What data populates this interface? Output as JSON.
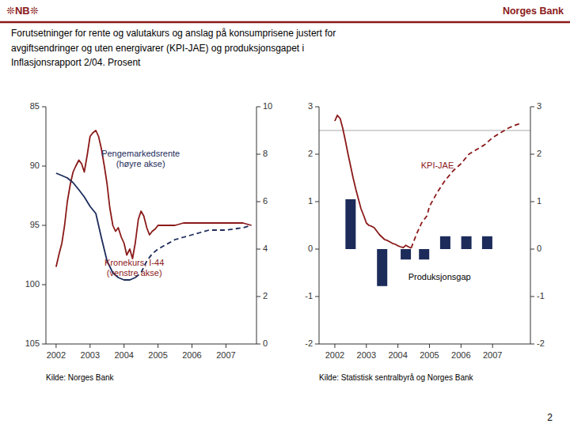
{
  "header": {
    "left": "❊NB❊",
    "right": "Norges Bank",
    "color": "#8B1A1A"
  },
  "title": "Forutsetninger for rente og valutakurs og anslag på konsumprisene justert for\navgiftsendringer og uten energivarer (KPI-JAE) og produksjonsgapet i\nInflasjonsrapport 2/04. Prosent",
  "page_number": "2",
  "chart_data": [
    {
      "type": "line",
      "xlim": [
        2001.7,
        2007.9
      ],
      "xticks": [
        2002,
        2003,
        2004,
        2005,
        2006,
        2007
      ],
      "ylim": [
        105,
        85
      ],
      "yticks": [
        85,
        90,
        95,
        100,
        105
      ],
      "y2lim": [
        0,
        10
      ],
      "y2ticks": [
        0,
        2,
        4,
        6,
        8,
        10
      ],
      "grid": false,
      "series": [
        {
          "color": "#8B1A1A",
          "line_style": "solid",
          "axis": "y",
          "x": [
            2002.0,
            2002.08,
            2002.17,
            2002.25,
            2002.33,
            2002.42,
            2002.5,
            2002.58,
            2002.67,
            2002.75,
            2002.83,
            2002.92,
            2003.0,
            2003.08,
            2003.17,
            2003.25,
            2003.33,
            2003.42,
            2003.5,
            2003.58,
            2003.67,
            2003.75,
            2003.83,
            2003.92,
            2004.0,
            2004.08,
            2004.17,
            2004.25,
            2004.33,
            2004.42,
            2004.5,
            2004.58,
            2004.67,
            2004.75,
            2004.83,
            2004.92,
            2005.0,
            2005.25,
            2005.5,
            2005.75,
            2006.0,
            2006.25,
            2006.5,
            2006.75,
            2007.0,
            2007.25,
            2007.5,
            2007.75
          ],
          "values": [
            98.5,
            97.5,
            96.5,
            95.0,
            93.0,
            91.5,
            90.5,
            90.0,
            89.5,
            89.8,
            90.5,
            89.0,
            87.5,
            87.2,
            87.0,
            87.5,
            88.5,
            90.0,
            91.5,
            93.5,
            95.0,
            95.5,
            95.2,
            96.0,
            96.5,
            97.5,
            97.0,
            97.8,
            96.5,
            94.5,
            93.8,
            94.2,
            95.2,
            95.8,
            95.5,
            95.3,
            95.0,
            95.0,
            95.0,
            94.8,
            94.8,
            94.8,
            94.8,
            94.8,
            94.8,
            94.8,
            94.8,
            95.0
          ]
        },
        {
          "color": "#1C2B5A",
          "line_style": "solid",
          "axis": "y2",
          "x": [
            2002.0,
            2002.17,
            2002.33,
            2002.5,
            2002.67,
            2002.83,
            2003.0,
            2003.17,
            2003.33,
            2003.5,
            2003.67,
            2003.83,
            2004.0,
            2004.17,
            2004.33
          ],
          "values": [
            7.2,
            7.1,
            7.0,
            6.8,
            6.5,
            6.2,
            5.8,
            5.5,
            4.5,
            3.5,
            3.0,
            2.8,
            2.7,
            2.7,
            2.8
          ]
        },
        {
          "color": "#1C2B5A",
          "line_style": "dashed",
          "axis": "y2",
          "x": [
            2004.33,
            2004.5,
            2004.67,
            2004.83,
            2005.0,
            2005.25,
            2005.5,
            2005.75,
            2006.0,
            2006.25,
            2006.5,
            2006.75,
            2007.0,
            2007.25,
            2007.5,
            2007.75
          ],
          "values": [
            2.8,
            3.0,
            3.5,
            3.8,
            4.0,
            4.2,
            4.4,
            4.5,
            4.6,
            4.7,
            4.8,
            4.8,
            4.8,
            4.85,
            4.9,
            5.0
          ]
        }
      ],
      "annotations": [
        {
          "text": "Kronekurs, I-44\n(venstre akse)",
          "color": "#8B1A1A"
        },
        {
          "text": "Pengemarkedsrente\n(høyre akse)",
          "color": "#1C2B5A"
        }
      ],
      "source": "Kilde: Norges Bank"
    },
    {
      "type": "bar",
      "xlim": [
        2001.5,
        2008.2
      ],
      "xticks": [
        2002,
        2003,
        2004,
        2005,
        2006,
        2007
      ],
      "ylim": [
        -2,
        3
      ],
      "yticks": [
        -2,
        -1,
        0,
        1,
        2,
        3
      ],
      "y2lim": [
        -2,
        3
      ],
      "y2ticks": [
        -2,
        -1,
        0,
        1,
        2,
        3
      ],
      "grid": false,
      "target_line": 2.5,
      "series": [
        {
          "type": "bar",
          "color": "#1C2B5A",
          "axis": "y",
          "x": [
            2002.5,
            2003.5,
            2004.25,
            2004.83,
            2005.5,
            2006.17,
            2006.83
          ],
          "values": [
            1.05,
            -0.78,
            -0.22,
            -0.22,
            0.27,
            0.27,
            0.27
          ]
        },
        {
          "type": "line",
          "color": "#8B1A1A",
          "line_style": "solid",
          "axis": "y",
          "x": [
            2002.0,
            2002.08,
            2002.17,
            2002.25,
            2002.33,
            2002.42,
            2002.5,
            2002.58,
            2002.67,
            2002.75,
            2002.83,
            2002.92,
            2003.0,
            2003.08,
            2003.17,
            2003.25,
            2003.33,
            2003.42,
            2003.5,
            2003.58,
            2003.67,
            2003.75,
            2003.83,
            2003.92,
            2004.0,
            2004.08,
            2004.17,
            2004.25,
            2004.33,
            2004.42
          ],
          "values": [
            2.7,
            2.82,
            2.75,
            2.55,
            2.3,
            2.0,
            1.75,
            1.5,
            1.25,
            1.05,
            0.85,
            0.7,
            0.55,
            0.5,
            0.48,
            0.45,
            0.38,
            0.3,
            0.25,
            0.2,
            0.18,
            0.15,
            0.12,
            0.1,
            0.07,
            0.05,
            0.03,
            0.08,
            0.05,
            0.02
          ]
        },
        {
          "type": "line",
          "color": "#8B1A1A",
          "line_style": "dashed",
          "axis": "y",
          "x": [
            2004.42,
            2004.58,
            2004.75,
            2004.92,
            2005.0,
            2005.25,
            2005.5,
            2005.75,
            2006.0,
            2006.25,
            2006.5,
            2006.75,
            2007.0,
            2007.25,
            2007.5,
            2007.75,
            2007.9
          ],
          "values": [
            0.02,
            0.3,
            0.55,
            0.7,
            0.9,
            1.2,
            1.45,
            1.65,
            1.8,
            2.0,
            2.1,
            2.2,
            2.35,
            2.45,
            2.55,
            2.62,
            2.65
          ]
        }
      ],
      "annotations": [
        {
          "text": "KPI-JAE",
          "color": "#8B1A1A"
        },
        {
          "text": "Produksjonsgap",
          "color": "#000000"
        }
      ],
      "source": "Kilde: Statistisk sentralbyrå og Norges Bank"
    }
  ]
}
